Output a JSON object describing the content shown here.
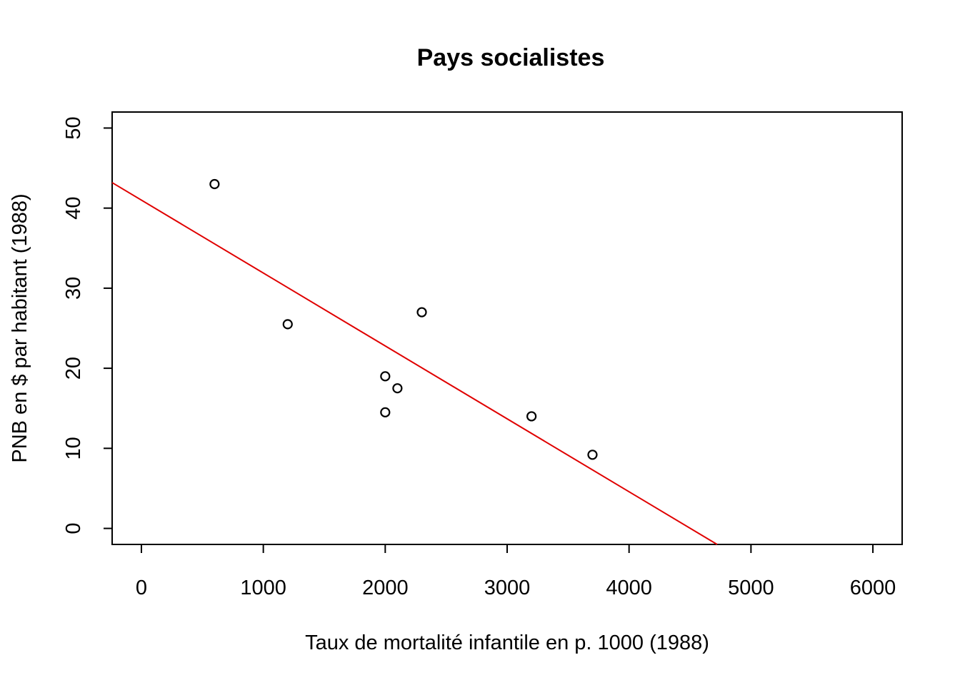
{
  "chart_data": {
    "type": "scatter",
    "title": "Pays socialistes",
    "xlabel": "Taux de mortalité infantile en p. 1000 (1988)",
    "ylabel": "PNB en $ par habitant (1988)",
    "xlim": [
      -240,
      6240
    ],
    "ylim": [
      -2,
      52
    ],
    "xticks": [
      0,
      1000,
      2000,
      3000,
      4000,
      5000,
      6000
    ],
    "yticks": [
      0,
      10,
      20,
      30,
      40,
      50
    ],
    "points": [
      {
        "x": 600,
        "y": 43
      },
      {
        "x": 1200,
        "y": 25.5
      },
      {
        "x": 2000,
        "y": 19
      },
      {
        "x": 2000,
        "y": 14.5
      },
      {
        "x": 2100,
        "y": 17.5
      },
      {
        "x": 2300,
        "y": 27
      },
      {
        "x": 3200,
        "y": 14
      },
      {
        "x": 3700,
        "y": 9.2
      }
    ],
    "regression_line": {
      "intercept": 41,
      "slope": -0.009105,
      "color": "#e00000"
    },
    "grid": false,
    "legend": "none"
  }
}
